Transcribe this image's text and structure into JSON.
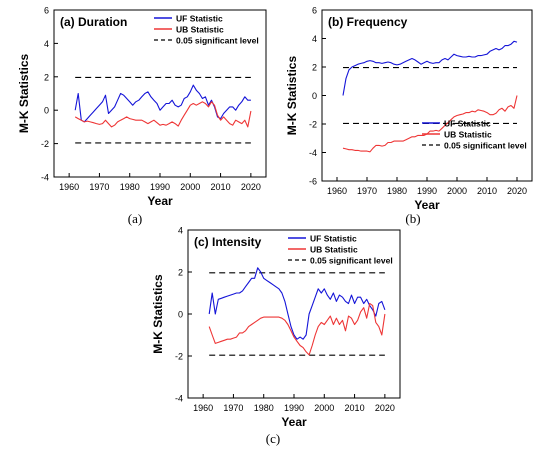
{
  "chart_data": [
    {
      "type": "line",
      "panel_label": "(a) Duration",
      "caption": "(a)",
      "xlabel": "Year",
      "ylabel": "M-K Statistics",
      "xlim": [
        1955,
        2025
      ],
      "ylim": [
        -4,
        6
      ],
      "xticks": [
        "1960",
        "1970",
        "1980",
        "1990",
        "2000",
        "2010",
        "2020"
      ],
      "yticks": [
        "-4",
        "-2",
        "0",
        "2",
        "4",
        "6"
      ],
      "legend_position": "top-right",
      "series": [
        {
          "name": "UF Statistic",
          "color": "#1515d8",
          "x": [
            1962,
            1963,
            1964,
            1965,
            1966,
            1967,
            1968,
            1969,
            1970,
            1971,
            1972,
            1973,
            1974,
            1975,
            1976,
            1977,
            1978,
            1979,
            1980,
            1981,
            1982,
            1983,
            1984,
            1985,
            1986,
            1987,
            1988,
            1989,
            1990,
            1991,
            1992,
            1993,
            1994,
            1995,
            1996,
            1997,
            1998,
            1999,
            2000,
            2001,
            2002,
            2003,
            2004,
            2005,
            2006,
            2007,
            2008,
            2009,
            2010,
            2011,
            2012,
            2013,
            2014,
            2015,
            2016,
            2017,
            2018,
            2019,
            2020
          ],
          "values": [
            0.0,
            1.0,
            -0.6,
            -0.7,
            -0.5,
            -0.3,
            -0.1,
            0.1,
            0.3,
            0.5,
            0.9,
            -0.2,
            0.0,
            0.2,
            0.6,
            1.0,
            0.9,
            0.7,
            0.5,
            0.3,
            0.5,
            0.6,
            0.8,
            1.0,
            1.1,
            0.8,
            0.6,
            0.4,
            0.0,
            0.2,
            0.4,
            0.4,
            0.6,
            0.3,
            0.2,
            0.3,
            0.7,
            0.8,
            1.1,
            1.5,
            1.2,
            1.0,
            0.7,
            0.8,
            0.3,
            0.6,
            0.2,
            -0.4,
            -0.5,
            -0.2,
            0.0,
            0.2,
            0.2,
            0.0,
            0.3,
            0.5,
            0.8,
            0.6,
            0.6
          ]
        },
        {
          "name": "UB Statistic",
          "color": "#ee3636",
          "x": [
            1962,
            1963,
            1964,
            1965,
            1966,
            1967,
            1968,
            1969,
            1970,
            1971,
            1972,
            1973,
            1974,
            1975,
            1976,
            1977,
            1978,
            1979,
            1980,
            1981,
            1982,
            1983,
            1984,
            1985,
            1986,
            1987,
            1988,
            1989,
            1990,
            1991,
            1992,
            1993,
            1994,
            1995,
            1996,
            1997,
            1998,
            1999,
            2000,
            2001,
            2002,
            2003,
            2004,
            2005,
            2006,
            2007,
            2008,
            2009,
            2010,
            2011,
            2012,
            2013,
            2014,
            2015,
            2016,
            2017,
            2018,
            2019,
            2020
          ],
          "values": [
            -0.4,
            -0.5,
            -0.6,
            -0.7,
            -0.65,
            -0.7,
            -0.75,
            -0.8,
            -0.85,
            -0.8,
            -0.6,
            -0.8,
            -1.0,
            -0.9,
            -0.7,
            -0.6,
            -0.5,
            -0.4,
            -0.5,
            -0.55,
            -0.6,
            -0.6,
            -0.6,
            -0.7,
            -0.8,
            -0.7,
            -0.6,
            -0.75,
            -0.9,
            -0.85,
            -0.9,
            -0.8,
            -0.7,
            -0.8,
            -0.95,
            -0.6,
            -0.3,
            0.0,
            0.3,
            0.4,
            0.3,
            0.4,
            0.5,
            0.4,
            0.2,
            0.5,
            0.3,
            -0.3,
            -0.6,
            -0.4,
            -0.6,
            -0.8,
            -0.9,
            -0.6,
            -0.7,
            -0.8,
            -0.6,
            -1.0,
            -0.05
          ]
        },
        {
          "name": "0.05 significant level",
          "color": "#000000",
          "dashed": true,
          "x": [
            1962,
            2020
          ],
          "values": [
            1.96,
            1.96
          ]
        }
      ],
      "significance_levels": [
        1.96,
        -1.96
      ]
    },
    {
      "type": "line",
      "panel_label": "(b) Frequency",
      "caption": "(b)",
      "xlabel": "Year",
      "ylabel": "M-K Statistics",
      "xlim": [
        1955,
        2025
      ],
      "ylim": [
        -6,
        6
      ],
      "xticks": [
        "1960",
        "1970",
        "1980",
        "1990",
        "2000",
        "2010",
        "2020"
      ],
      "yticks": [
        "-6",
        "-4",
        "-2",
        "0",
        "2",
        "4",
        "6"
      ],
      "legend_position": "bottom-right",
      "series": [
        {
          "name": "UF Statistic",
          "color": "#1515d8",
          "x": [
            1962,
            1963,
            1964,
            1965,
            1966,
            1967,
            1968,
            1969,
            1970,
            1971,
            1972,
            1973,
            1974,
            1975,
            1976,
            1977,
            1978,
            1979,
            1980,
            1981,
            1982,
            1983,
            1984,
            1985,
            1986,
            1987,
            1988,
            1989,
            1990,
            1991,
            1992,
            1993,
            1994,
            1995,
            1996,
            1997,
            1998,
            1999,
            2000,
            2001,
            2002,
            2003,
            2004,
            2005,
            2006,
            2007,
            2008,
            2009,
            2010,
            2011,
            2012,
            2013,
            2014,
            2015,
            2016,
            2017,
            2018,
            2019,
            2020
          ],
          "values": [
            0.0,
            1.2,
            1.8,
            2.0,
            2.1,
            2.2,
            2.25,
            2.3,
            2.4,
            2.45,
            2.4,
            2.3,
            2.3,
            2.25,
            2.3,
            2.35,
            2.3,
            2.2,
            2.15,
            2.2,
            2.3,
            2.4,
            2.5,
            2.6,
            2.5,
            2.35,
            2.2,
            2.3,
            2.4,
            2.3,
            2.25,
            2.3,
            2.3,
            2.5,
            2.6,
            2.5,
            2.7,
            2.9,
            2.8,
            2.75,
            2.7,
            2.7,
            2.75,
            2.7,
            2.7,
            2.8,
            2.8,
            2.85,
            2.9,
            3.1,
            3.2,
            3.3,
            3.2,
            3.3,
            3.5,
            3.5,
            3.6,
            3.8,
            3.75
          ]
        },
        {
          "name": "UB Statistic",
          "color": "#ee3636",
          "x": [
            1962,
            1963,
            1964,
            1965,
            1966,
            1967,
            1968,
            1969,
            1970,
            1971,
            1972,
            1973,
            1974,
            1975,
            1976,
            1977,
            1978,
            1979,
            1980,
            1981,
            1982,
            1983,
            1984,
            1985,
            1986,
            1987,
            1988,
            1989,
            1990,
            1991,
            1992,
            1993,
            1994,
            1995,
            1996,
            1997,
            1998,
            1999,
            2000,
            2001,
            2002,
            2003,
            2004,
            2005,
            2006,
            2007,
            2008,
            2009,
            2010,
            2011,
            2012,
            2013,
            2014,
            2015,
            2016,
            2017,
            2018,
            2019,
            2020
          ],
          "values": [
            -3.7,
            -3.75,
            -3.8,
            -3.8,
            -3.85,
            -3.85,
            -3.9,
            -3.9,
            -3.9,
            -3.95,
            -3.7,
            -3.5,
            -3.5,
            -3.55,
            -3.5,
            -3.3,
            -3.3,
            -3.2,
            -3.2,
            -3.2,
            -3.2,
            -3.1,
            -3.0,
            -2.9,
            -2.9,
            -2.8,
            -2.8,
            -2.8,
            -2.7,
            -2.5,
            -2.5,
            -2.45,
            -2.5,
            -2.3,
            -2.1,
            -1.9,
            -1.7,
            -1.5,
            -1.4,
            -1.35,
            -1.3,
            -1.2,
            -1.2,
            -1.1,
            -1.15,
            -1.0,
            -1.05,
            -1.1,
            -1.2,
            -1.35,
            -1.35,
            -1.25,
            -1.0,
            -0.9,
            -1.1,
            -0.8,
            -0.7,
            -0.9,
            0.0
          ]
        },
        {
          "name": "0.05 significant level",
          "color": "#000000",
          "dashed": true,
          "x": [
            1962,
            2020
          ],
          "values": [
            1.96,
            1.96
          ]
        }
      ],
      "significance_levels": [
        1.96,
        -1.96
      ]
    },
    {
      "type": "line",
      "panel_label": "(c) Intensity",
      "caption": "(c)",
      "xlabel": "Year",
      "ylabel": "M-K Statistics",
      "xlim": [
        1955,
        2025
      ],
      "ylim": [
        -4,
        4
      ],
      "xticks": [
        "1960",
        "1970",
        "1980",
        "1990",
        "2000",
        "2010",
        "2020"
      ],
      "yticks": [
        "-4",
        "-2",
        "0",
        "2",
        "4"
      ],
      "legend_position": "top-right",
      "series": [
        {
          "name": "UF Statistic",
          "color": "#1515d8",
          "x": [
            1962,
            1963,
            1964,
            1965,
            1966,
            1967,
            1968,
            1969,
            1970,
            1971,
            1972,
            1973,
            1974,
            1975,
            1976,
            1977,
            1978,
            1979,
            1980,
            1981,
            1982,
            1983,
            1984,
            1985,
            1986,
            1987,
            1988,
            1989,
            1990,
            1991,
            1992,
            1993,
            1994,
            1995,
            1996,
            1997,
            1998,
            1999,
            2000,
            2001,
            2002,
            2003,
            2004,
            2005,
            2006,
            2007,
            2008,
            2009,
            2010,
            2011,
            2012,
            2013,
            2014,
            2015,
            2016,
            2017,
            2018,
            2019,
            2020
          ],
          "values": [
            0.0,
            1.0,
            0.0,
            0.7,
            0.75,
            0.8,
            0.85,
            0.9,
            0.95,
            1.0,
            1.0,
            1.1,
            1.3,
            1.5,
            1.7,
            1.7,
            2.2,
            2.0,
            1.7,
            1.6,
            1.5,
            1.4,
            1.3,
            1.2,
            1.0,
            0.6,
            0.0,
            -0.6,
            -1.0,
            -1.2,
            -1.1,
            -1.2,
            -1.0,
            0.0,
            0.4,
            0.8,
            1.2,
            1.0,
            1.2,
            0.9,
            0.7,
            1.0,
            0.6,
            0.9,
            0.8,
            0.6,
            0.5,
            0.9,
            0.5,
            0.8,
            0.8,
            0.5,
            0.7,
            0.4,
            0.2,
            -0.1,
            0.5,
            0.6,
            0.2
          ]
        },
        {
          "name": "UB Statistic",
          "color": "#ee3636",
          "x": [
            1962,
            1963,
            1964,
            1965,
            1966,
            1967,
            1968,
            1969,
            1970,
            1971,
            1972,
            1973,
            1974,
            1975,
            1976,
            1977,
            1978,
            1979,
            1980,
            1981,
            1982,
            1983,
            1984,
            1985,
            1986,
            1987,
            1988,
            1989,
            1990,
            1991,
            1992,
            1993,
            1994,
            1995,
            1996,
            1997,
            1998,
            1999,
            2000,
            2001,
            2002,
            2003,
            2004,
            2005,
            2006,
            2007,
            2008,
            2009,
            2010,
            2011,
            2012,
            2013,
            2014,
            2015,
            2016,
            2017,
            2018,
            2019,
            2020
          ],
          "values": [
            -0.6,
            -1.0,
            -1.4,
            -1.35,
            -1.3,
            -1.25,
            -1.2,
            -1.2,
            -1.15,
            -1.1,
            -0.9,
            -0.9,
            -0.8,
            -0.6,
            -0.5,
            -0.4,
            -0.3,
            -0.2,
            -0.15,
            -0.15,
            -0.15,
            -0.15,
            -0.15,
            -0.15,
            -0.2,
            -0.3,
            -0.5,
            -0.8,
            -1.1,
            -1.3,
            -1.5,
            -1.6,
            -1.8,
            -1.95,
            -1.5,
            -1.0,
            -0.6,
            -0.4,
            -0.5,
            -0.3,
            -0.1,
            -0.5,
            -0.2,
            -0.5,
            -0.3,
            -0.8,
            -0.1,
            -0.2,
            -0.5,
            -0.3,
            0.1,
            0.3,
            -0.2,
            0.5,
            0.4,
            -0.4,
            -0.6,
            -1.0,
            0.0
          ]
        },
        {
          "name": "0.05 significant level",
          "color": "#000000",
          "dashed": true,
          "x": [
            1962,
            2020
          ],
          "values": [
            1.96,
            1.96
          ]
        }
      ],
      "significance_levels": [
        1.96,
        -1.96
      ]
    }
  ]
}
